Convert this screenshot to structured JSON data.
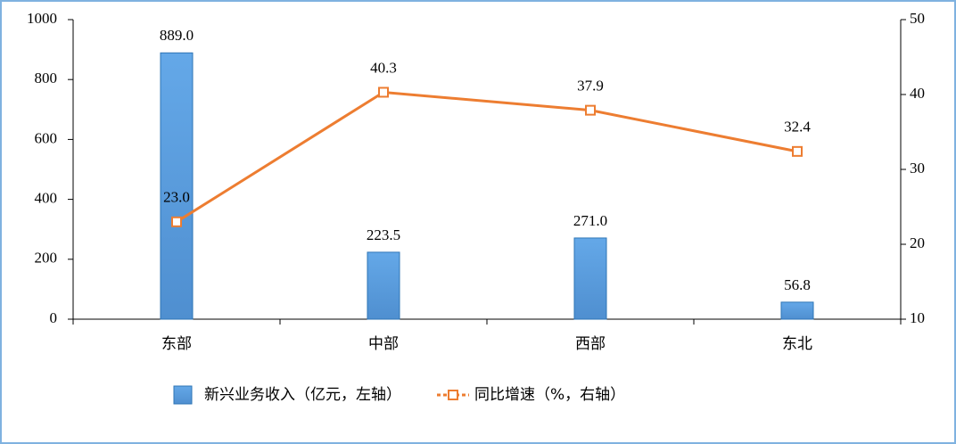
{
  "chart_data": {
    "type": "bar",
    "categories": [
      "东部",
      "中部",
      "西部",
      "东北"
    ],
    "series": [
      {
        "name": "新兴业务收入（亿元，左轴）",
        "type": "bar",
        "color": "#5b9bd5",
        "values": [
          889.0,
          223.5,
          271.0,
          56.8
        ],
        "value_labels": [
          "889.0",
          "223.5",
          "271.0",
          "56.8"
        ]
      },
      {
        "name": "同比增速（%，右轴）",
        "type": "line",
        "axis": "y2",
        "color": "#ed7d31",
        "values": [
          23.0,
          40.3,
          37.9,
          32.4
        ],
        "value_labels": [
          "23.0",
          "40.3",
          "37.9",
          "32.4"
        ]
      }
    ],
    "ylim": [
      0,
      1000
    ],
    "yticks": [
      0,
      200,
      400,
      600,
      800,
      1000
    ],
    "y2lim": [
      10,
      50
    ],
    "y2ticks": [
      10,
      20,
      30,
      40,
      50
    ],
    "legend": "bottom"
  }
}
